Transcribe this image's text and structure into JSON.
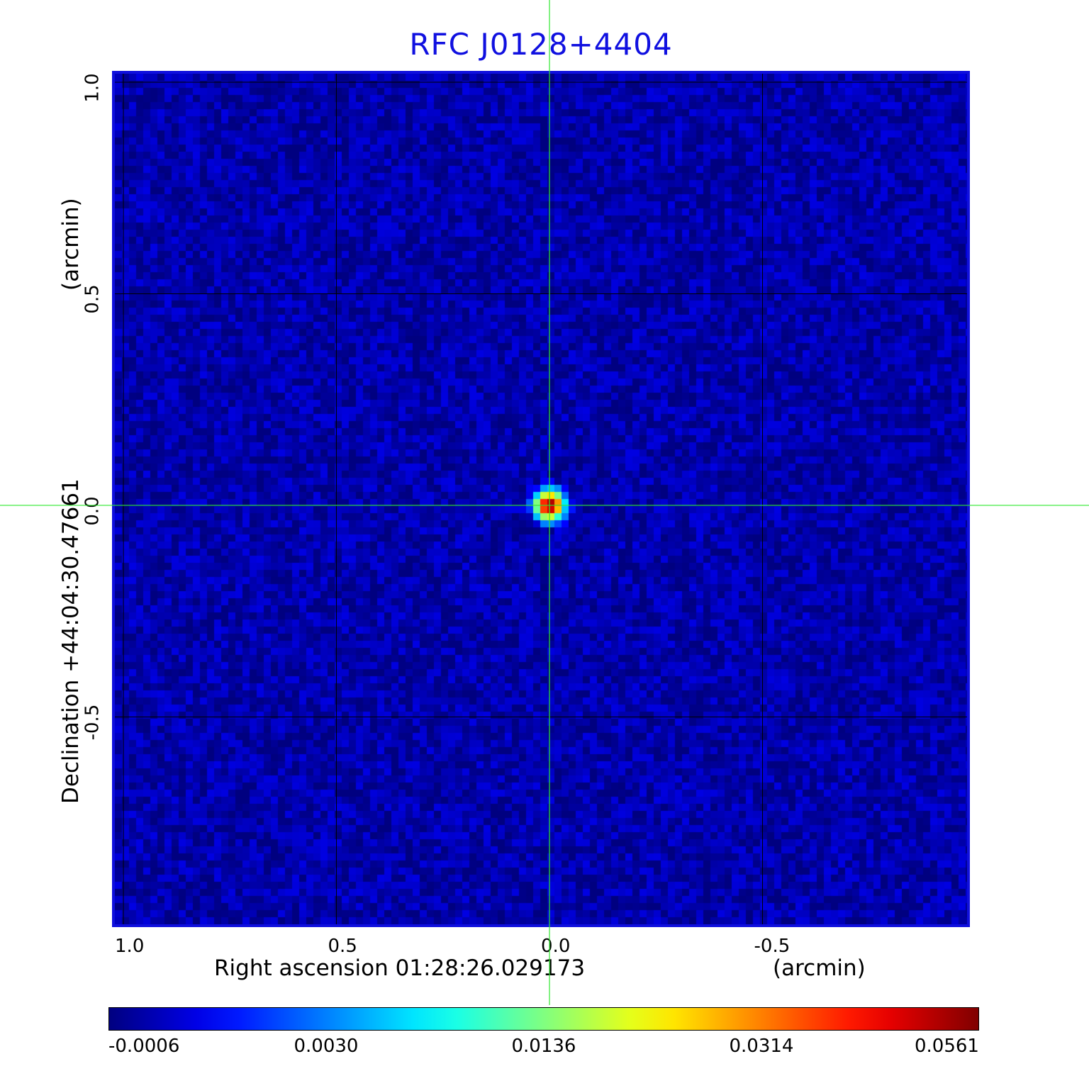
{
  "chart_data": {
    "type": "heatmap",
    "title": "RFC J0128+4404",
    "xlabel": "Right ascension  01:28:26.029173",
    "xlabel_unit": "(arcmin)",
    "ylabel": "Declination  +44:04:30.47661",
    "ylabel_unit": "(arcmin)",
    "x_axis": {
      "reversed": true,
      "range": [
        1.02,
        -0.98
      ],
      "ticks": [
        1.0,
        0.5,
        0.0,
        -0.5
      ],
      "tick_labels": [
        "1.0",
        "0.5",
        "0.0",
        "-0.5"
      ]
    },
    "y_axis": {
      "range": [
        -0.99,
        1.02
      ],
      "ticks": [
        1.0,
        0.5,
        0.0,
        -0.5
      ],
      "tick_labels": [
        "1.0",
        "0.5",
        "0.0",
        "-0.5"
      ]
    },
    "grid": true,
    "crosshair": {
      "x": 0.0,
      "y": 0.0,
      "color": "#2ee82e"
    },
    "source": {
      "x": 0.0,
      "y": 0.0,
      "peak": 0.0561
    },
    "background_level": 0.0,
    "colorbar": {
      "colormap": "jet",
      "ticks": [
        -0.0006,
        0.003,
        0.0136,
        0.0314,
        0.0561
      ],
      "tick_labels": [
        "-0.0006",
        "0.0030",
        "0.0136",
        "0.0314",
        "0.0561"
      ]
    }
  }
}
